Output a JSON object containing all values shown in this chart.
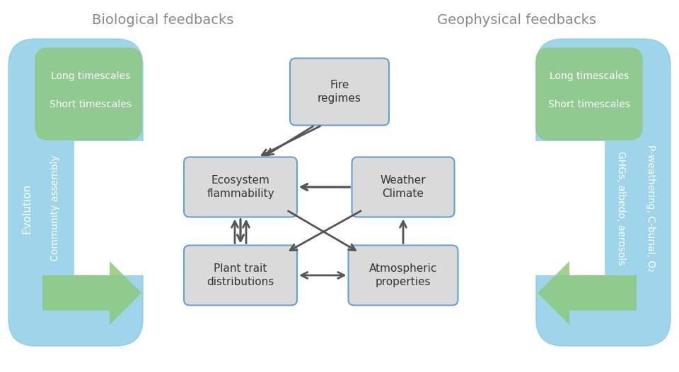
{
  "title_left": "Biological feedbacks",
  "title_right": "Geophysical feedbacks",
  "box_fire": "Fire\nregimes",
  "box_eco": "Ecosystem\nflammability",
  "box_weather": "Weather\nClimate",
  "box_plant": "Plant trait\ndistributions",
  "box_atm": "Atmospheric\nproperties",
  "label_long_left": "Long timescales",
  "label_short_left": "Short timescales",
  "label_long_right": "Long timescales",
  "label_short_right": "Short timescales",
  "label_evolution": "Evolution",
  "label_community": "Community assembly",
  "label_ghgs": "GHGs, albedo, aerosols",
  "label_pweathering": "P-weathering, C-burial, O₂",
  "blue_color": "#7EC8E3",
  "green_color": "#8DC87A",
  "box_bg_color": "#D8D8D8",
  "box_border_color": "#5B9BD5",
  "arrow_color": "#555555",
  "text_white": "#FFFFFF",
  "text_dark": "#333333",
  "title_color": "#888888",
  "figw": 9.6,
  "figh": 5.27,
  "dpi": 100
}
